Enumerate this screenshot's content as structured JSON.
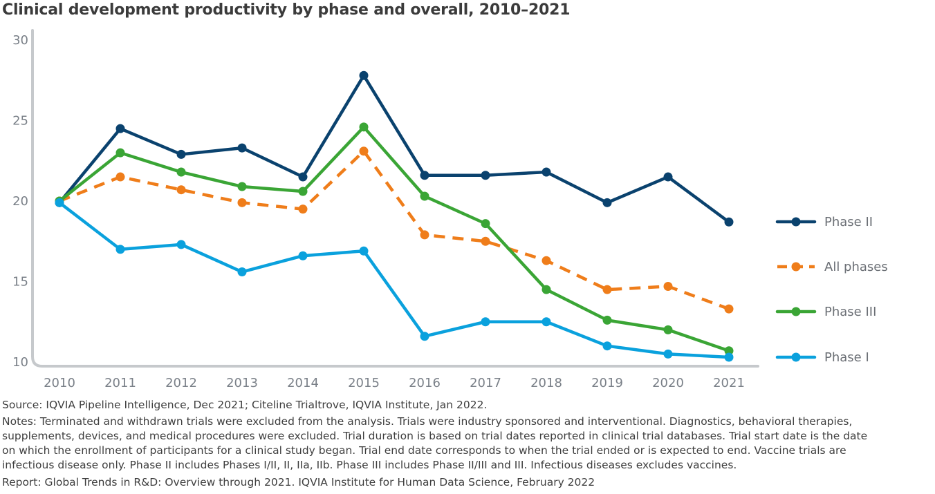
{
  "title": "Clinical development productivity by phase and overall, 2010–2021",
  "chart_data": {
    "type": "line",
    "title": "Clinical development productivity by phase and overall, 2010–2021",
    "xlabel": "",
    "ylabel": "",
    "categories": [
      "2010",
      "2011",
      "2012",
      "2013",
      "2014",
      "2015",
      "2016",
      "2017",
      "2018",
      "2019",
      "2020",
      "2021"
    ],
    "y_ticks": [
      10,
      15,
      20,
      25,
      30
    ],
    "ylim": [
      10,
      30
    ],
    "grid": false,
    "legend_position": "right",
    "series": [
      {
        "name": "Phase II",
        "color": "#0a426e",
        "dashed": false,
        "values": [
          19.9,
          24.5,
          22.9,
          23.3,
          21.5,
          27.8,
          21.6,
          21.6,
          21.8,
          19.9,
          21.5,
          18.7
        ]
      },
      {
        "name": "All phases",
        "color": "#ef7d1a",
        "dashed": true,
        "values": [
          20.0,
          21.5,
          20.7,
          19.9,
          19.5,
          23.1,
          17.9,
          17.5,
          16.3,
          14.5,
          14.7,
          13.3
        ]
      },
      {
        "name": "Phase III",
        "color": "#3aa535",
        "dashed": false,
        "values": [
          20.0,
          23.0,
          21.8,
          20.9,
          20.6,
          24.6,
          20.3,
          18.6,
          14.5,
          12.6,
          12.0,
          10.7
        ]
      },
      {
        "name": "Phase I",
        "color": "#0aa1dd",
        "dashed": false,
        "values": [
          19.9,
          17.0,
          17.3,
          15.6,
          16.6,
          16.9,
          11.6,
          12.5,
          12.5,
          11.0,
          10.5,
          10.3
        ]
      }
    ]
  },
  "footer": {
    "source": "Source: IQVIA Pipeline Intelligence, Dec 2021; Citeline Trialtrove, IQVIA Institute, Jan 2022.",
    "notes_lines": [
      "Notes: Terminated and withdrawn trials were excluded from the analysis. Trials were industry sponsored and interventional. Diagnostics, behavioral therapies,",
      "supplements, devices, and medical procedures were excluded. Trial duration is based on trial dates reported in clinical trial databases. Trial start date is the date",
      "on which the enrollment of participants for a clinical study began. Trial end date corresponds to when the trial ended or is expected to end. Vaccine trials are",
      "infectious disease only. Phase II includes Phases I/II, II, IIa, IIb. Phase III includes Phase II/III and III. Infectious diseases excludes vaccines."
    ],
    "report": "Report: Global Trends in R&D: Overview through 2021. IQVIA Institute for Human Data Science, February 2022"
  },
  "colors": {
    "axis": "#c6c9cc",
    "tick_text": "#7a8088"
  }
}
